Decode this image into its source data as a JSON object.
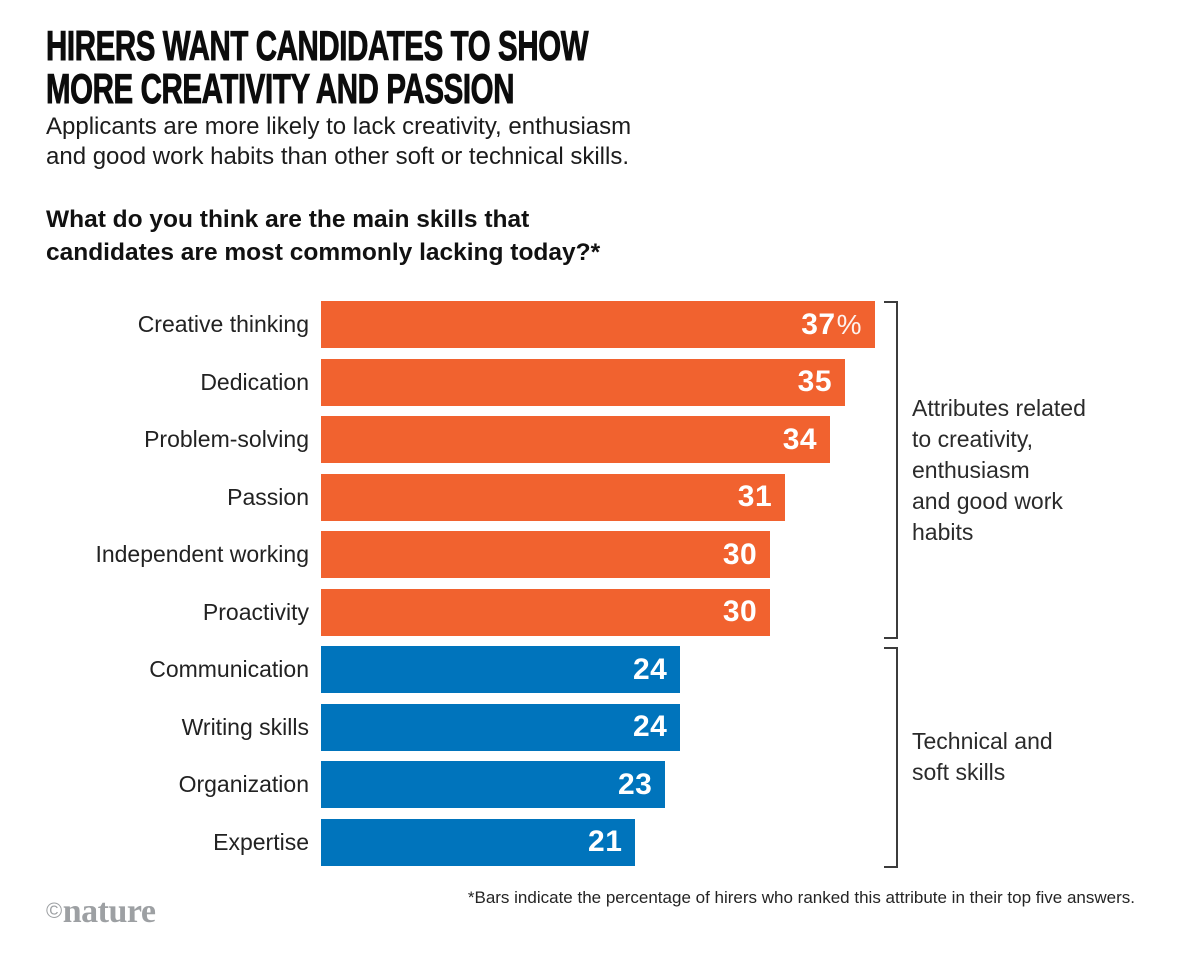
{
  "header": {
    "title": "HIRERS WANT CANDIDATES TO SHOW\nMORE CREATIVITY AND PASSION",
    "subtitle": "Applicants are more likely to lack creativity, enthusiasm\nand good work habits than other soft or technical skills.",
    "question": "What do you think are the main skills that\ncandidates are most commonly lacking today?*"
  },
  "chart_data": {
    "type": "bar",
    "orientation": "horizontal",
    "max_value": 37,
    "unit": "%",
    "group_colors": {
      "creativity": "#F1622F",
      "technical": "#0074BC"
    },
    "bars": [
      {
        "label": "Creative thinking",
        "value": 37,
        "display": "37",
        "suffix": "%",
        "group": "creativity"
      },
      {
        "label": "Dedication",
        "value": 35,
        "display": "35",
        "suffix": "",
        "group": "creativity"
      },
      {
        "label": "Problem-solving",
        "value": 34,
        "display": "34",
        "suffix": "",
        "group": "creativity"
      },
      {
        "label": "Passion",
        "value": 31,
        "display": "31",
        "suffix": "",
        "group": "creativity"
      },
      {
        "label": "Independent working",
        "value": 30,
        "display": "30",
        "suffix": "",
        "group": "creativity"
      },
      {
        "label": "Proactivity",
        "value": 30,
        "display": "30",
        "suffix": "",
        "group": "creativity"
      },
      {
        "label": "Communication",
        "value": 24,
        "display": "24",
        "suffix": "",
        "group": "technical"
      },
      {
        "label": "Writing skills",
        "value": 24,
        "display": "24",
        "suffix": "",
        "group": "technical"
      },
      {
        "label": "Organization",
        "value": 23,
        "display": "23",
        "suffix": "",
        "group": "technical"
      },
      {
        "label": "Expertise",
        "value": 21,
        "display": "21",
        "suffix": "",
        "group": "technical"
      }
    ],
    "annotations": [
      {
        "text": "Attributes related\nto creativity,\nenthusiasm\nand good work\nhabits",
        "group": "creativity"
      },
      {
        "text": "Technical and\nsoft skills",
        "group": "technical"
      }
    ]
  },
  "footer": {
    "footnote": "*Bars indicate the percentage of hirers who ranked this attribute in their top five answers.",
    "credit": {
      "symbol": "©",
      "name": "nature"
    }
  }
}
